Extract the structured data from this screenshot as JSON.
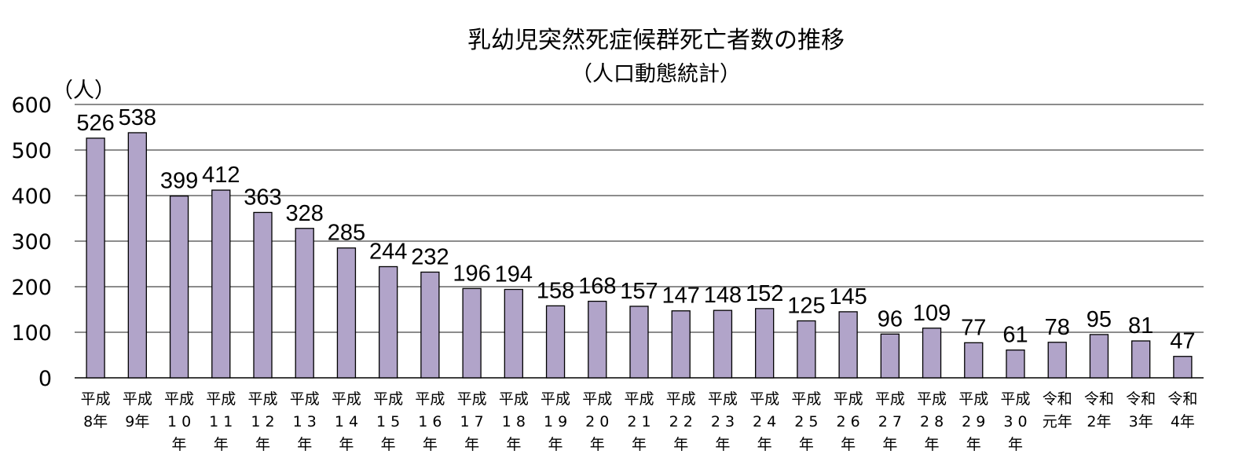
{
  "chart_data": {
    "type": "bar",
    "title": "乳幼児突然死症候群死亡者数の推移",
    "subtitle": "（人口動態統計）",
    "ylabel": "（人）",
    "xlabel": "",
    "ylim": [
      0,
      600
    ],
    "yticks": [
      "0",
      "100",
      "200",
      "300",
      "400",
      "500",
      "600"
    ],
    "grid": true,
    "bar_color": "#b1a4c9",
    "categories": [
      [
        "平成",
        "8年"
      ],
      [
        "平成",
        "9年"
      ],
      [
        "平成",
        "1 0",
        "年"
      ],
      [
        "平成",
        "1 1",
        "年"
      ],
      [
        "平成",
        "1 2",
        "年"
      ],
      [
        "平成",
        "1 3",
        "年"
      ],
      [
        "平成",
        "1 4",
        "年"
      ],
      [
        "平成",
        "1 5",
        "年"
      ],
      [
        "平成",
        "1 6",
        "年"
      ],
      [
        "平成",
        "1 7",
        "年"
      ],
      [
        "平成",
        "1 8",
        "年"
      ],
      [
        "平成",
        "1 9",
        "年"
      ],
      [
        "平成",
        "2 0",
        "年"
      ],
      [
        "平成",
        "2 1",
        "年"
      ],
      [
        "平成",
        "2 2",
        "年"
      ],
      [
        "平成",
        "2 3",
        "年"
      ],
      [
        "平成",
        "2 4",
        "年"
      ],
      [
        "平成",
        "2 5",
        "年"
      ],
      [
        "平成",
        "2 6",
        "年"
      ],
      [
        "平成",
        "2 7",
        "年"
      ],
      [
        "平成",
        "2 8",
        "年"
      ],
      [
        "平成",
        "2 9",
        "年"
      ],
      [
        "平成",
        "3 0",
        "年"
      ],
      [
        "令和",
        "元年"
      ],
      [
        "令和",
        "2年"
      ],
      [
        "令和",
        "3年"
      ],
      [
        "令和",
        "4年"
      ]
    ],
    "values": [
      526,
      538,
      399,
      412,
      363,
      328,
      285,
      244,
      232,
      196,
      194,
      158,
      168,
      157,
      147,
      148,
      152,
      125,
      145,
      96,
      109,
      77,
      61,
      78,
      95,
      81,
      47
    ]
  }
}
